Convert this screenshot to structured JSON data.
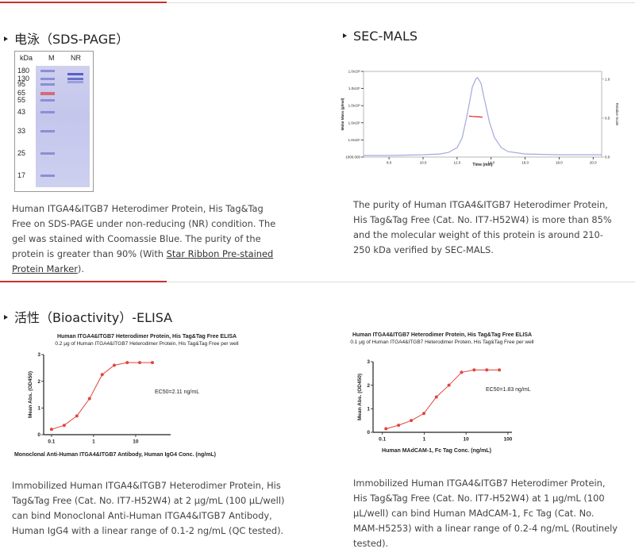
{
  "sds_page": {
    "title": "电泳（SDS-PAGE）",
    "gel": {
      "columns": [
        "kDa",
        "M",
        "NR"
      ],
      "markers": [
        "180",
        "130",
        "95",
        "65",
        "55",
        "43",
        "33",
        "25",
        "17"
      ]
    },
    "description": {
      "text": "Human ITGA4&ITGB7 Heterodimer Protein, His Tag&Tag Free on SDS-PAGE under non-reducing (NR) condition. The gel was stained with Coomassie Blue. The purity of the protein is greater than 90% (With ",
      "link": "Star Ribbon Pre-stained Protein Marker",
      "text_end": ")."
    }
  },
  "sec_mals": {
    "title": "SEC-MALS",
    "chart_data": {
      "type": "line",
      "xlabel": "Time (min)",
      "ylabel": "Molar Mass (g/mol)",
      "y2label": "Relative Scale",
      "xlim": [
        6.5,
        20.5
      ],
      "xticks": [
        {
          "value": 8,
          "label": "8.0"
        },
        {
          "value": 10,
          "label": "10.0"
        },
        {
          "value": 12,
          "label": "12.0"
        },
        {
          "value": 14,
          "label": "14.0"
        },
        {
          "value": 16,
          "label": "16.0"
        },
        {
          "value": 18,
          "label": "18.0"
        },
        {
          "value": 20,
          "label": "20.0"
        }
      ],
      "ylog": true,
      "ylim": [
        1000,
        100000000
      ],
      "yticks": [
        {
          "value": 1000,
          "label": "1000.000"
        },
        {
          "value": 10000,
          "label": "1.0x10⁴"
        },
        {
          "value": 100000,
          "label": "1.0x10⁵"
        },
        {
          "value": 1000000,
          "label": "1.0x10⁶"
        },
        {
          "value": 10000000,
          "label": "1.0x10⁷"
        },
        {
          "value": 100000000,
          "label": "1.0x10⁸"
        }
      ],
      "y2lim": [
        0,
        1.1
      ],
      "y2ticks": [
        {
          "value": 0,
          "label": "0.0"
        },
        0.5,
        {
          "value": 1,
          "label": "1.0"
        }
      ],
      "series": [
        {
          "color": "#a4a8e0",
          "axis": "y2",
          "x": [
            6.5,
            8,
            10,
            11,
            11.5,
            12,
            12.3,
            12.6,
            12.9,
            13.1,
            13.2,
            13.4,
            13.6,
            13.9,
            14.2,
            14.6,
            15,
            16,
            18,
            20.5
          ],
          "values": [
            0.02,
            0.02,
            0.03,
            0.04,
            0.06,
            0.12,
            0.25,
            0.55,
            0.9,
            1.0,
            1.02,
            0.95,
            0.75,
            0.45,
            0.25,
            0.12,
            0.07,
            0.04,
            0.03,
            0.03
          ]
        },
        {
          "color": "#e02020",
          "x": [
            12.7,
            12.9,
            13.1,
            13.3,
            13.5
          ],
          "values": [
            245000,
            235000,
            228000,
            220000,
            212000
          ]
        }
      ]
    },
    "description": "The purity of Human ITGA4&ITGB7 Heterodimer Protein, His Tag&Tag Free (Cat. No. IT7-H52W4) is more than 85% and the molecular weight of this protein is around 210-250 kDa verified by SEC-MALS."
  },
  "elisa": {
    "title": "活性（Bioactivity）-ELISA",
    "charts": [
      {
        "chart_data": {
          "type": "line",
          "title": "Human ITGA4&ITGB7 Heterodimer Protein, His Tag&Tag Free ELISA",
          "subtitle": "0.2 μg of Human ITGA4&ITGB7 Heterodimer Protein, His Tag&Tag Free per well",
          "xlabel": "Monoclonal Anti-Human ITGA4&ITGB7 Antibody, Human IgG4 Conc. (ng/mL)",
          "ylabel": "Mean Abs. (OD450)",
          "annotation": "EC50=2.11  ng/mL",
          "xlog": true,
          "xlim": [
            0.065,
            68
          ],
          "xticks": [
            0.1,
            1,
            10
          ],
          "ylim": [
            0,
            3
          ],
          "yticks": [
            0,
            1,
            2,
            3
          ],
          "color": "#e0463c",
          "x": [
            0.1,
            0.2,
            0.4,
            0.8,
            1.6,
            3.1,
            6.3,
            12.5,
            25
          ],
          "values": [
            0.2,
            0.35,
            0.7,
            1.35,
            2.25,
            2.6,
            2.7,
            2.7,
            2.7
          ]
        },
        "description": "Immobilized Human ITGA4&ITGB7 Heterodimer Protein, His Tag&Tag Free (Cat. No. IT7-H52W4) at 2 μg/mL (100 μL/well) can bind Monoclonal Anti-Human ITGA4&ITGB7 Antibody, Human IgG4 with a linear range of 0.1-2 ng/mL (QC tested)."
      },
      {
        "chart_data": {
          "type": "line",
          "title": "Human ITGA4&ITGB7 Heterodimer Protein, His Tag&Tag Free ELISA",
          "subtitle": "0.1 μg of Human ITGA4&ITGB7 Heterodimer Protein, His Tag&Tag Free per well",
          "xlabel": "Human MAdCAM-1, Fc Tag Conc. (ng/mL)",
          "ylabel": "Mean Abs. (OD450)",
          "annotation": "EC50=1.83  ng/mL",
          "xlog": true,
          "xlim": [
            0.06,
            125
          ],
          "xticks": [
            0.1,
            1,
            10,
            100
          ],
          "ylim": [
            0,
            3
          ],
          "yticks": [
            0,
            1,
            2,
            3
          ],
          "color": "#e0463c",
          "x": [
            0.122,
            0.244,
            0.49,
            0.98,
            1.95,
            3.9,
            7.8,
            15.6,
            31.25,
            62.5
          ],
          "values": [
            0.15,
            0.3,
            0.5,
            0.8,
            1.5,
            2.0,
            2.55,
            2.65,
            2.65,
            2.65
          ]
        },
        "description": "Immobilized Human ITGA4&ITGB7 Heterodimer Protein, His Tag&Tag Free (Cat. No. IT7-H52W4) at 1 μg/mL (100 μL/well) can bind Human MAdCAM-1, Fc Tag (Cat. No. MAM-H5253) with a linear range of 0.2-4 ng/mL (Routinely tested)."
      }
    ]
  }
}
